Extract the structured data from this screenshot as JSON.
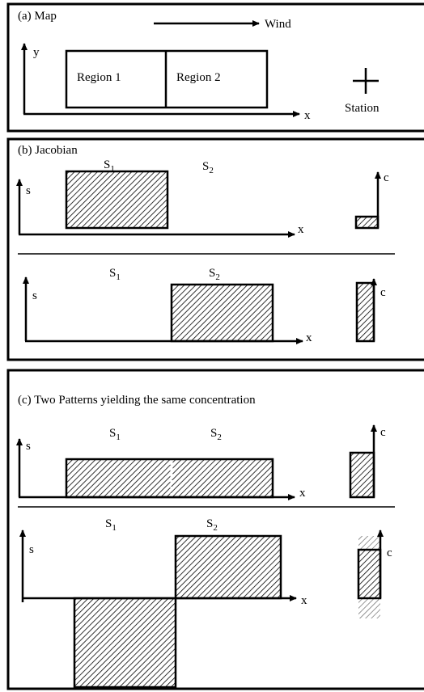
{
  "panel_a": {
    "title": "(a) Map",
    "wind": "Wind",
    "y_axis": "y",
    "x_axis": "x",
    "regions": [
      "Region 1",
      "Region 2"
    ],
    "station": "Station"
  },
  "panel_b": {
    "title": "(b) Jacobian",
    "rows": [
      {
        "s1": {
          "letter": "S",
          "sub": "1"
        },
        "s2": {
          "letter": "S",
          "sub": "2"
        },
        "s_axis": "s",
        "x_axis": "x",
        "c_axis": "c"
      },
      {
        "s1": {
          "letter": "S",
          "sub": "1"
        },
        "s2": {
          "letter": "S",
          "sub": "2"
        },
        "s_axis": "s",
        "x_axis": "x",
        "c_axis": "c"
      }
    ]
  },
  "panel_c": {
    "title": "(c) Two Patterns yielding the same concentration",
    "rows": [
      {
        "s1": {
          "letter": "S",
          "sub": "1"
        },
        "s2": {
          "letter": "S",
          "sub": "2"
        },
        "s_axis": "s",
        "x_axis": "x",
        "c_axis": "c"
      },
      {
        "s1": {
          "letter": "S",
          "sub": "1"
        },
        "s2": {
          "letter": "S",
          "sub": "2"
        },
        "s_axis": "s",
        "x_axis": "x",
        "c_axis": "c"
      }
    ]
  }
}
